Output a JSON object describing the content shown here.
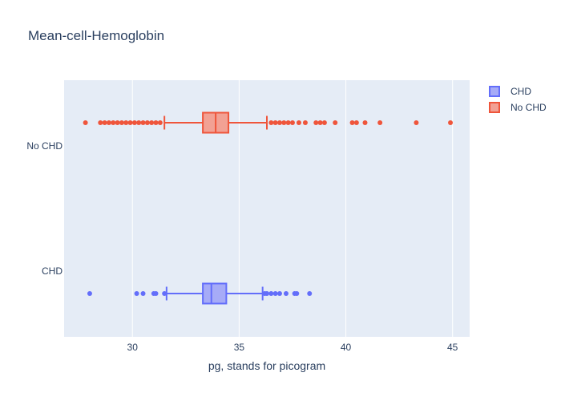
{
  "chart_data": {
    "type": "box",
    "title": "Mean-cell-Hemoglobin",
    "xlabel": "pg, stands for picogram",
    "ylabel": "",
    "xlim": [
      26.8,
      45.8
    ],
    "x_ticks": [
      30,
      35,
      40,
      45
    ],
    "categories": [
      "CHD",
      "No CHD"
    ],
    "grid": true,
    "legend_position": "top-right",
    "series": [
      {
        "name": "CHD",
        "category": "CHD",
        "color": "#636efa",
        "fill": "#a6abf7",
        "min": 31.6,
        "q1": 33.3,
        "median": 33.7,
        "q3": 34.4,
        "max": 36.1,
        "outliers": [
          28.0,
          30.2,
          30.5,
          31.0,
          31.1,
          31.5,
          36.2,
          36.3,
          36.5,
          36.7,
          36.9,
          37.2,
          37.6,
          37.7,
          38.3
        ]
      },
      {
        "name": "No CHD",
        "category": "No CHD",
        "color": "#ef553b",
        "fill": "#f2a194",
        "min": 31.5,
        "q1": 33.3,
        "median": 33.9,
        "q3": 34.5,
        "max": 36.3,
        "outliers": [
          27.8,
          28.5,
          28.7,
          28.9,
          29.1,
          29.3,
          29.5,
          29.7,
          29.9,
          30.1,
          30.3,
          30.5,
          30.7,
          30.9,
          31.1,
          31.3,
          36.5,
          36.7,
          36.9,
          37.1,
          37.3,
          37.5,
          37.8,
          38.1,
          38.6,
          38.8,
          39.0,
          39.5,
          40.3,
          40.5,
          40.9,
          41.6,
          43.3,
          44.9
        ]
      }
    ]
  }
}
